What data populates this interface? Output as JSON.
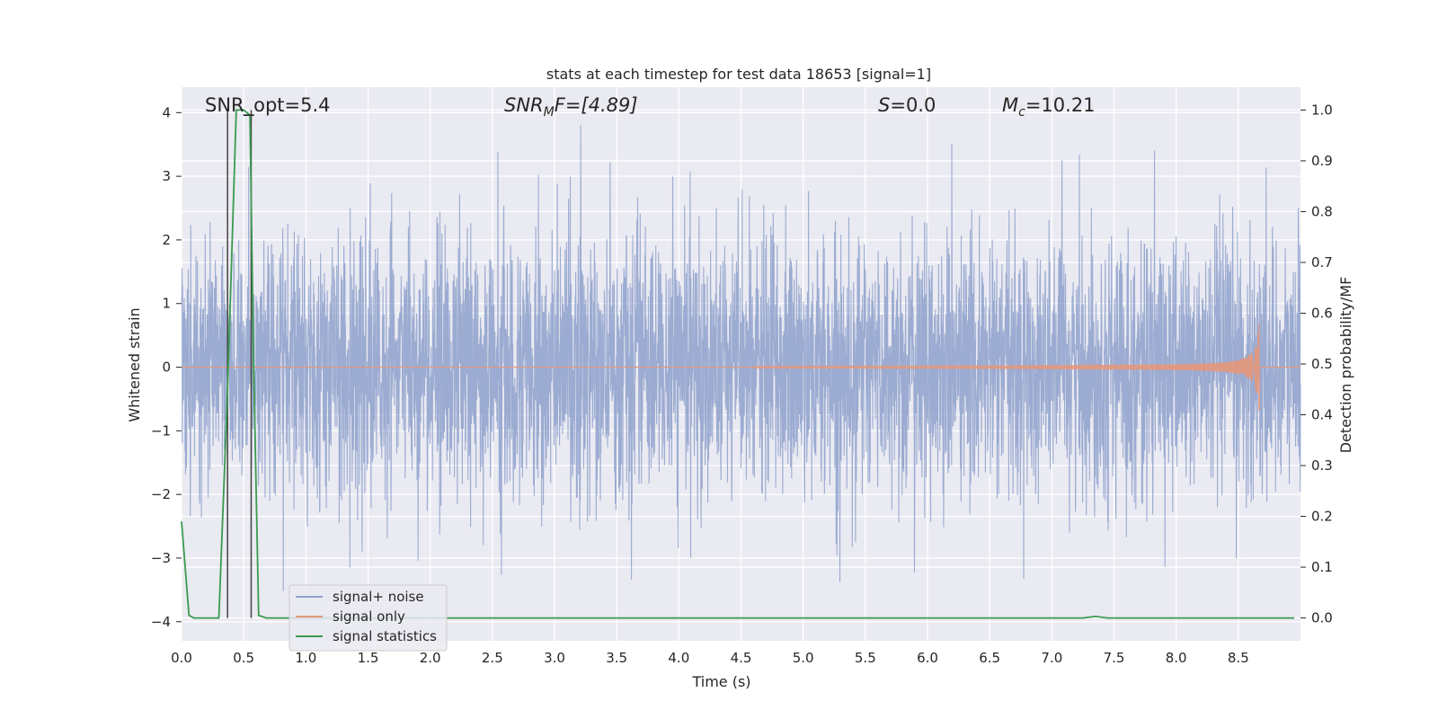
{
  "chart_data": {
    "type": "line",
    "title": "stats at each timestep for test data 18653 [signal=1]",
    "xlabel": "Time (s)",
    "ylabel_left": "Whitened strain",
    "ylabel_right": "Detection probability/MF",
    "xlim": [
      0,
      9.0
    ],
    "ylim_left": [
      -4.3,
      4.4
    ],
    "ylim_right": [
      -0.045,
      1.045
    ],
    "x_ticks": [
      "0.0",
      "0.5",
      "1.0",
      "1.5",
      "2.0",
      "2.5",
      "3.0",
      "3.5",
      "4.0",
      "4.5",
      "5.0",
      "5.5",
      "6.0",
      "6.5",
      "7.0",
      "7.5",
      "8.0",
      "8.5"
    ],
    "y_ticks_left": [
      "4",
      "3",
      "2",
      "1",
      "0",
      "−1",
      "−2",
      "−3",
      "−4"
    ],
    "y_ticks_right": [
      "1.0",
      "0.9",
      "0.8",
      "0.7",
      "0.6",
      "0.5",
      "0.4",
      "0.3",
      "0.2",
      "0.1",
      "0.0"
    ],
    "grid": true,
    "legend_position": "lower-left",
    "annotations": {
      "snr_opt": "SNR_opt=5.4",
      "snr_mf_label": "SNR",
      "snr_mf_sub": "M",
      "snr_mf_value": "F=[4.89]",
      "s_label": "S",
      "s_value": "=0.0",
      "mc_label": "M",
      "mc_sub": "c",
      "mc_value": "=10.21"
    },
    "series": [
      {
        "name": "signal+ noise",
        "color": "#8da0cb",
        "axis": "left",
        "description_values": {
          "x_range": [
            0,
            9.0
          ],
          "typical_amplitude": 1.0,
          "peak_positive": 4.0,
          "peak_negative": -3.8
        }
      },
      {
        "name": "signal only",
        "color": "#e5977a",
        "axis": "left",
        "chirp": {
          "start": 4.6,
          "end": 8.67,
          "peak_amplitude": 0.8
        }
      },
      {
        "name": "signal statistics",
        "color": "#3a9a4f",
        "axis": "right",
        "x": [
          0.0,
          0.06,
          0.1,
          0.2,
          0.3,
          0.37,
          0.44,
          0.5,
          0.55,
          0.58,
          0.62,
          0.68,
          1.0,
          2.0,
          3.0,
          4.0,
          5.0,
          6.0,
          7.0,
          7.25,
          7.35,
          7.45,
          7.6,
          8.0,
          8.5,
          8.95
        ],
        "y": [
          0.19,
          0.005,
          0.0,
          0.0,
          0.0,
          0.45,
          1.0,
          1.0,
          0.99,
          0.5,
          0.005,
          0.0,
          0.0,
          0.0,
          0.0,
          0.0,
          0.0,
          0.0,
          0.0,
          0.0,
          0.003,
          0.0,
          0.0,
          0.0,
          0.0,
          0.0
        ]
      }
    ],
    "vlines": [
      {
        "x": 0.37,
        "color": "#444444"
      },
      {
        "x": 0.56,
        "color": "#444444"
      }
    ],
    "small_marker": {
      "x": 0.54,
      "y_right": 0.99
    }
  }
}
